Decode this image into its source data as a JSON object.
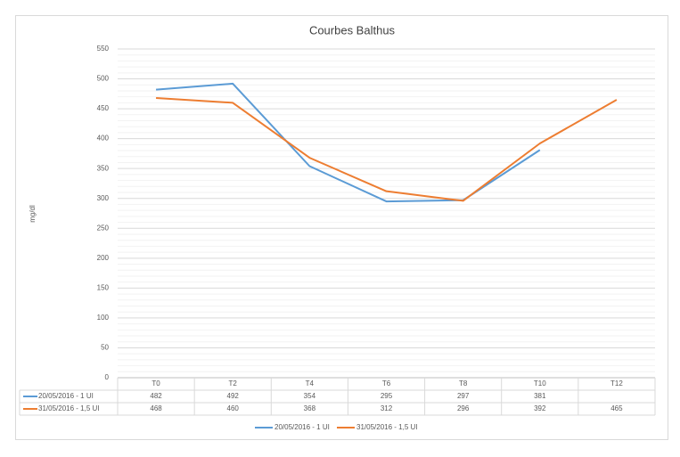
{
  "chart_data": {
    "type": "line",
    "title": "Courbes Balthus",
    "y_label": "mg/dl",
    "categories": [
      "T0",
      "T2",
      "T4",
      "T6",
      "T8",
      "T10",
      "T12"
    ],
    "series": [
      {
        "name": "20/05/2016 - 1 UI",
        "color": "#5b9bd5",
        "values": [
          482,
          492,
          354,
          295,
          297,
          381,
          null
        ]
      },
      {
        "name": "31/05/2016 - 1,5 UI",
        "color": "#ed7d31",
        "values": [
          468,
          460,
          368,
          312,
          296,
          392,
          465
        ]
      }
    ],
    "ylim": [
      0,
      550
    ],
    "yticks": [
      0,
      50,
      100,
      150,
      200,
      250,
      300,
      350,
      400,
      450,
      500,
      550
    ],
    "grid": true,
    "minor_grid": true,
    "data_table": true,
    "legend": "bottom"
  }
}
